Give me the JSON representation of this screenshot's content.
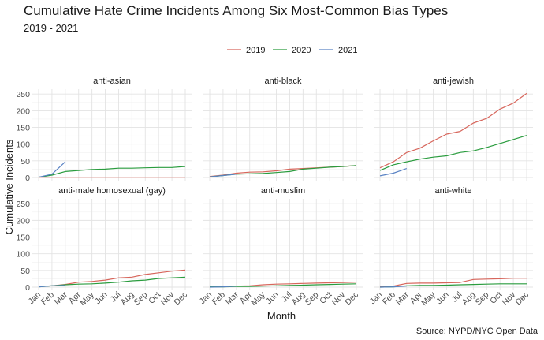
{
  "chart_data": {
    "type": "line",
    "title": "Cumulative Hate Crime Incidents Among Six Most-Common Bias Types",
    "subtitle": "2019 - 2021",
    "xlabel": "Month",
    "ylabel": "Cumulative Incidents",
    "caption": "Source: NYPD/NYC Open Data",
    "categories": [
      "Jan",
      "Feb",
      "Mar",
      "Apr",
      "May",
      "Jun",
      "Jul",
      "Aug",
      "Sep",
      "Oct",
      "Nov",
      "Dec"
    ],
    "y_ticks": [
      0,
      50,
      100,
      150,
      200,
      250
    ],
    "ylim": [
      0,
      260
    ],
    "grid": true,
    "legend_position": "top",
    "legend": [
      {
        "name": "2019",
        "color": "#d7665c"
      },
      {
        "name": "2020",
        "color": "#2a9c3e"
      },
      {
        "name": "2021",
        "color": "#5a83c4"
      }
    ],
    "panels": [
      {
        "name": "anti-asian",
        "series": [
          {
            "name": "2019",
            "values": [
              1,
              1,
              1,
              1,
              1,
              1,
              1,
              1,
              1,
              1,
              1,
              1
            ]
          },
          {
            "name": "2020",
            "values": [
              1,
              7,
              18,
              21,
              24,
              25,
              28,
              28,
              29,
              30,
              30,
              33
            ]
          },
          {
            "name": "2021",
            "values": [
              1,
              10,
              47
            ]
          }
        ]
      },
      {
        "name": "anti-black",
        "series": [
          {
            "name": "2019",
            "values": [
              3,
              7,
              13,
              16,
              17,
              20,
              25,
              27,
              29,
              31,
              33,
              36
            ]
          },
          {
            "name": "2020",
            "values": [
              2,
              6,
              10,
              11,
              12,
              15,
              18,
              25,
              28,
              31,
              33,
              36
            ]
          },
          {
            "name": "2021",
            "values": [
              2,
              6,
              10
            ]
          }
        ]
      },
      {
        "name": "anti-jewish",
        "series": [
          {
            "name": "2019",
            "values": [
              29,
              47,
              75,
              88,
              110,
              130,
              138,
              163,
              177,
              205,
              223,
              252
            ]
          },
          {
            "name": "2020",
            "values": [
              21,
              38,
              47,
              55,
              61,
              65,
              75,
              80,
              90,
              102,
              114,
              126
            ]
          },
          {
            "name": "2021",
            "values": [
              5,
              13,
              27
            ]
          }
        ]
      },
      {
        "name": "anti-male homosexual (gay)",
        "series": [
          {
            "name": "2019",
            "values": [
              2,
              4,
              8,
              15,
              17,
              21,
              28,
              30,
              38,
              43,
              48,
              51
            ]
          },
          {
            "name": "2020",
            "values": [
              1,
              4,
              7,
              9,
              10,
              12,
              15,
              19,
              21,
              26,
              28,
              30
            ]
          },
          {
            "name": "2021",
            "values": [
              1,
              4,
              5
            ]
          }
        ]
      },
      {
        "name": "anti-muslim",
        "series": [
          {
            "name": "2019",
            "values": [
              1,
              2,
              3,
              4,
              7,
              9,
              10,
              11,
              12,
              13,
              14,
              15
            ]
          },
          {
            "name": "2020",
            "values": [
              1,
              1,
              2,
              2,
              3,
              4,
              5,
              6,
              7,
              8,
              9,
              10
            ]
          },
          {
            "name": "2021",
            "values": [
              0,
              1,
              3
            ]
          }
        ]
      },
      {
        "name": "anti-white",
        "series": [
          {
            "name": "2019",
            "values": [
              1,
              3,
              11,
              12,
              12,
              13,
              14,
              23,
              24,
              25,
              27,
              27
            ]
          },
          {
            "name": "2020",
            "values": [
              0,
              1,
              4,
              5,
              5,
              6,
              7,
              8,
              9,
              10,
              10,
              10
            ]
          },
          {
            "name": "2021",
            "values": [
              0,
              1,
              3
            ]
          }
        ]
      }
    ]
  }
}
